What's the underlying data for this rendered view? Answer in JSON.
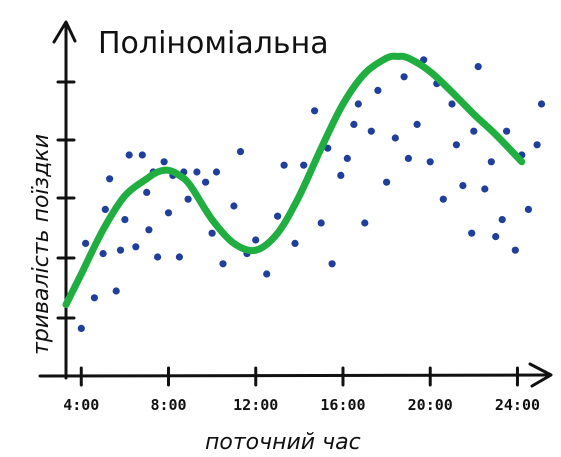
{
  "chart_data": {
    "type": "scatter",
    "title": "Поліноміальна",
    "xlabel": "поточний час",
    "ylabel": "тривалість поїздки",
    "x_ticks": [
      {
        "value": 4,
        "label": "4:00"
      },
      {
        "value": 8,
        "label": "8:00"
      },
      {
        "value": 12,
        "label": "12:00"
      },
      {
        "value": 16,
        "label": "16:00"
      },
      {
        "value": 20,
        "label": "20:00"
      },
      {
        "value": 24,
        "label": "24:00"
      }
    ],
    "xlim": [
      3.3,
      25.4
    ],
    "ylim": [
      0,
      10
    ],
    "y_ticks": [
      2,
      4,
      6,
      8,
      10,
      12
    ],
    "colors": {
      "points": "#1f3f9a",
      "curve": "#1fae3f",
      "axis": "#111111"
    },
    "series": [
      {
        "type": "scatter",
        "x": [
          4.0,
          4.2,
          4.6,
          5.0,
          5.1,
          5.3,
          5.6,
          5.8,
          6.0,
          6.2,
          6.5,
          6.8,
          7.0,
          7.1,
          7.3,
          7.5,
          7.8,
          8.0,
          8.2,
          8.5,
          8.7,
          8.9,
          9.3,
          9.7,
          10.0,
          10.2,
          10.5,
          11.0,
          11.3,
          11.6,
          12.0,
          12.5,
          13.0,
          13.3,
          13.8,
          14.2,
          14.7,
          15.0,
          15.3,
          15.5,
          15.9,
          16.2,
          16.5,
          16.7,
          17.0,
          17.3,
          17.6,
          18.0,
          18.4,
          18.8,
          19.0,
          19.4,
          19.7,
          20.0,
          20.3,
          20.6,
          21.0,
          21.2,
          21.5,
          21.9,
          22.0,
          22.2,
          22.5,
          22.8,
          23.0,
          23.3,
          23.5,
          23.9,
          24.2,
          24.5,
          24.9,
          25.1
        ],
        "y": [
          1.4,
          3.9,
          2.3,
          3.6,
          4.9,
          5.8,
          2.5,
          3.7,
          4.6,
          6.5,
          3.8,
          6.5,
          5.4,
          4.3,
          6.0,
          3.5,
          6.3,
          4.8,
          5.9,
          3.5,
          6.0,
          5.2,
          6.0,
          5.7,
          4.2,
          6.0,
          3.3,
          5.0,
          6.6,
          3.6,
          4.0,
          3.0,
          4.7,
          6.2,
          3.9,
          6.2,
          7.8,
          4.5,
          6.7,
          3.3,
          5.9,
          6.4,
          7.4,
          8.0,
          4.5,
          7.2,
          8.4,
          5.7,
          7.0,
          8.8,
          6.4,
          7.4,
          9.3,
          6.3,
          8.6,
          5.2,
          8.0,
          6.8,
          5.6,
          4.2,
          7.2,
          9.1,
          5.5,
          6.3,
          4.1,
          4.6,
          7.2,
          3.7,
          6.5,
          4.9,
          6.8,
          8.0
        ]
      },
      {
        "type": "line",
        "x": [
          3.3,
          4,
          5,
          6,
          7,
          7.5,
          8,
          8.5,
          9,
          10,
          11,
          12,
          13,
          14,
          15,
          16,
          17,
          18,
          18.5,
          19,
          20,
          21,
          22,
          23,
          24.2
        ],
        "y": [
          2.1,
          3.0,
          4.3,
          5.3,
          5.8,
          6.0,
          6.05,
          5.9,
          5.6,
          4.6,
          3.9,
          3.7,
          4.2,
          5.3,
          6.7,
          8.0,
          8.9,
          9.35,
          9.4,
          9.35,
          8.95,
          8.35,
          7.7,
          7.1,
          6.3
        ]
      }
    ]
  }
}
